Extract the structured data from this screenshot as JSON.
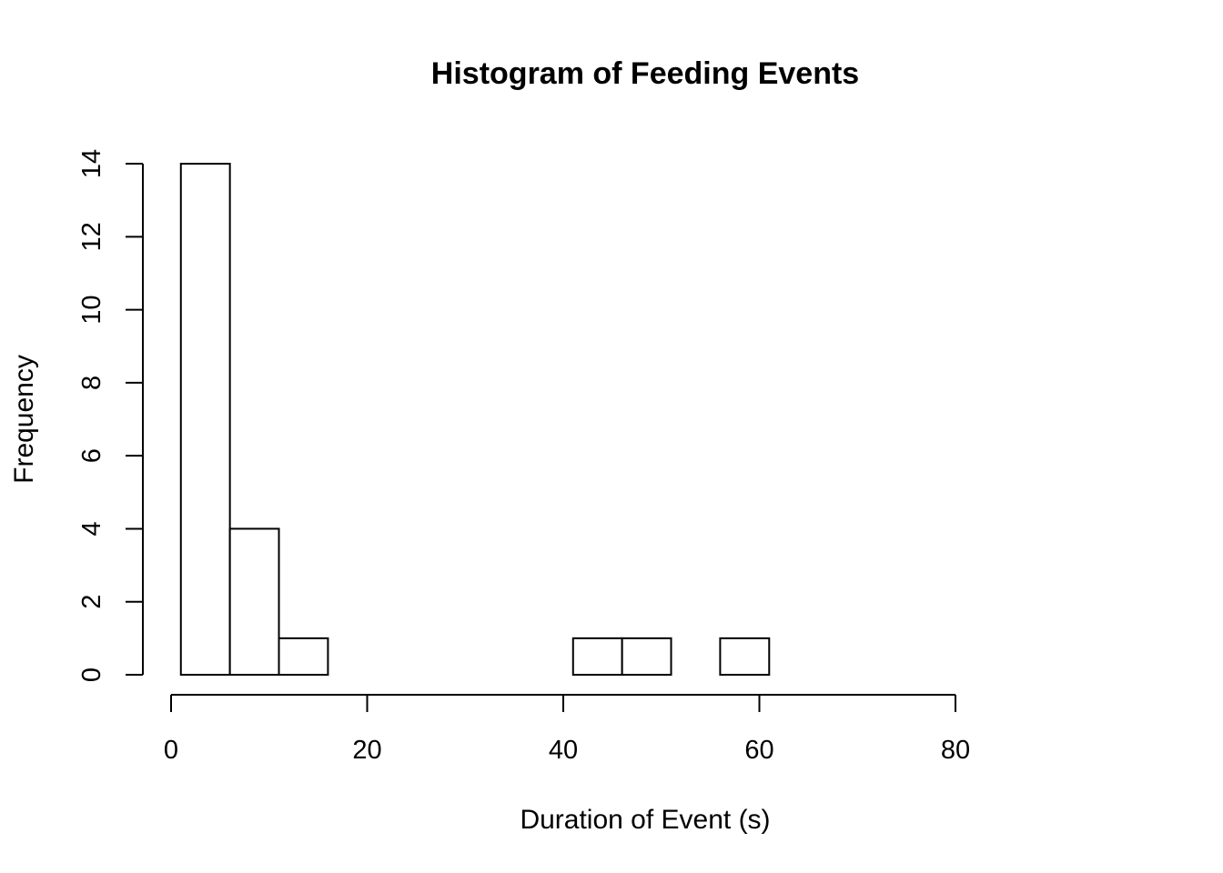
{
  "chart_data": {
    "type": "bar",
    "title": "Histogram of Feeding Events",
    "xlabel": "Duration of Event (s)",
    "ylabel": "Frequency",
    "bin_width": 5,
    "bins": [
      {
        "start": 1,
        "end": 6,
        "count": 14
      },
      {
        "start": 6,
        "end": 11,
        "count": 4
      },
      {
        "start": 11,
        "end": 16,
        "count": 1
      },
      {
        "start": 16,
        "end": 21,
        "count": 0
      },
      {
        "start": 21,
        "end": 26,
        "count": 0
      },
      {
        "start": 26,
        "end": 31,
        "count": 0
      },
      {
        "start": 31,
        "end": 36,
        "count": 0
      },
      {
        "start": 36,
        "end": 41,
        "count": 0
      },
      {
        "start": 41,
        "end": 46,
        "count": 1
      },
      {
        "start": 46,
        "end": 51,
        "count": 1
      },
      {
        "start": 51,
        "end": 56,
        "count": 0
      },
      {
        "start": 56,
        "end": 61,
        "count": 1
      },
      {
        "start": 61,
        "end": 66,
        "count": 0
      },
      {
        "start": 66,
        "end": 71,
        "count": 0
      },
      {
        "start": 71,
        "end": 76,
        "count": 0
      },
      {
        "start": 76,
        "end": 81,
        "count": 0
      },
      {
        "start": 81,
        "end": 86,
        "count": 0
      },
      {
        "start": 86,
        "end": 91,
        "count": 0
      },
      {
        "start": 91,
        "end": 96,
        "count": 0
      }
    ],
    "x_ticks": [
      "0",
      "20",
      "40",
      "60",
      "80"
    ],
    "y_ticks": [
      "0",
      "2",
      "4",
      "6",
      "8",
      "10",
      "12",
      "14"
    ],
    "xlim": [
      0,
      96
    ],
    "ylim": [
      0,
      14
    ],
    "grid": false,
    "legend": false,
    "bar_fill": "#ffffff",
    "bar_stroke": "#000000"
  }
}
